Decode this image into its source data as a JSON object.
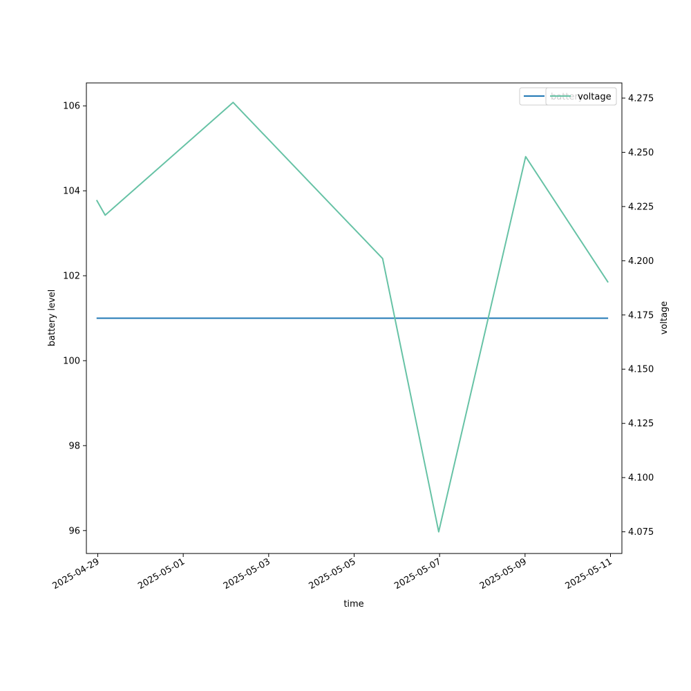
{
  "chart_data": {
    "type": "line",
    "xlabel": "time",
    "ylabel_left": "battery level",
    "ylabel_right": "voltage",
    "x_range": [
      "2025-04-28T17:36:00",
      "2025-05-11T06:24:00"
    ],
    "ylim_left": [
      95.46,
      106.54
    ],
    "ylim_right": [
      4.065,
      4.282
    ],
    "x_ticks": [
      "2025-04-29",
      "2025-05-01",
      "2025-05-03",
      "2025-05-05",
      "2025-05-07",
      "2025-05-09",
      "2025-05-11"
    ],
    "y_ticks_left": [
      "96",
      "98",
      "100",
      "102",
      "104",
      "106"
    ],
    "y_ticks_right": [
      "4.075",
      "4.100",
      "4.125",
      "4.150",
      "4.175",
      "4.200",
      "4.225",
      "4.250",
      "4.275"
    ],
    "legend_placement": "upper-right",
    "colors": {
      "battery": "#1f77b4",
      "voltage": "#66c2a5"
    },
    "series": [
      {
        "name": "battery",
        "axis": "left",
        "x": [
          "2025-04-28T23:20:00",
          "2025-05-10T22:40:00"
        ],
        "values": [
          101,
          101
        ]
      },
      {
        "name": "voltage",
        "axis": "right",
        "x": [
          "2025-04-28T23:20:00",
          "2025-04-29T04:10:00",
          "2025-05-02T04:00:00",
          "2025-05-05T16:00:00",
          "2025-05-06T23:30:00",
          "2025-05-09T00:20:00",
          "2025-05-10T22:40:00"
        ],
        "values": [
          4.228,
          4.221,
          4.273,
          4.201,
          4.075,
          4.248,
          4.19
        ]
      }
    ]
  }
}
